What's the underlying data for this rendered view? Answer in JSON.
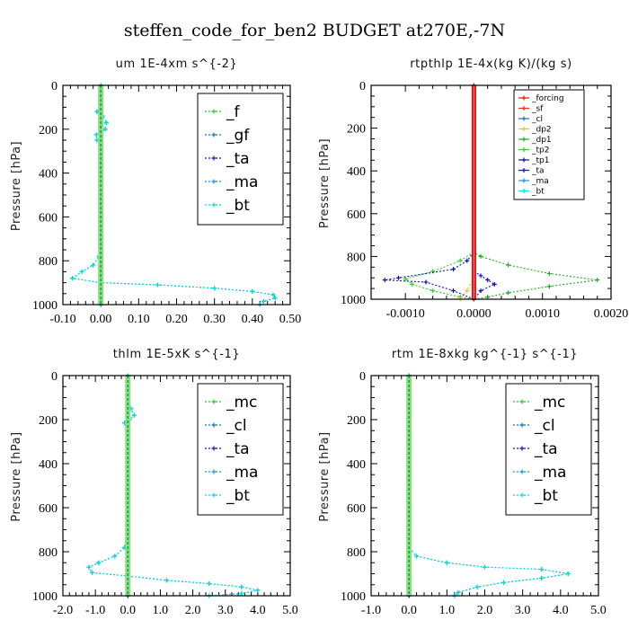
{
  "suptitle": "steffen_code_for_ben2  BUDGET at270E,-7N",
  "colors": {
    "f": "#22cc22",
    "gf": "#1177bb",
    "ta": "#1111cc",
    "ma": "#1199dd",
    "bt": "#00dddd",
    "mc": "#22cc22",
    "cl": "#1177bb",
    "forcing": "#ee1111",
    "sf": "#ee3311",
    "dp2": "#ffbb22",
    "dp1": "#22aa22",
    "tp2": "#33cc33",
    "tp1": "#1111aa"
  },
  "chart_data": [
    {
      "type": "line",
      "title": "um   1E-4xm s^{-2}",
      "ylabel": "Pressure [hPa]",
      "xlim": [
        -0.1,
        0.5
      ],
      "ylim": [
        1000,
        0
      ],
      "xticks": [
        "-0.10",
        "0.00",
        "0.10",
        "0.20",
        "0.30",
        "0.40",
        "0.50"
      ],
      "yticks": [
        "0",
        "200",
        "400",
        "600",
        "800",
        "1000"
      ],
      "legend": {
        "position": "top-right",
        "size": "large",
        "entries": [
          "_f",
          "_gf",
          "_ta",
          "_ma",
          "_bt"
        ]
      },
      "series": [
        {
          "name": "_f",
          "color_key": "f",
          "points": [
            [
              0,
              0
            ],
            [
              0,
              100
            ],
            [
              0,
              200
            ],
            [
              0,
              300
            ],
            [
              0,
              400
            ],
            [
              0,
              500
            ],
            [
              0,
              600
            ],
            [
              0,
              700
            ],
            [
              0,
              800
            ],
            [
              0,
              900
            ],
            [
              0,
              1000
            ]
          ]
        },
        {
          "name": "_gf",
          "color_key": "gf",
          "points": [
            [
              0,
              0
            ],
            [
              0,
              100
            ],
            [
              -0.01,
              120
            ],
            [
              0.005,
              140
            ],
            [
              0.015,
              170
            ],
            [
              0.012,
              200
            ],
            [
              -0.012,
              225
            ],
            [
              -0.01,
              250
            ],
            [
              0,
              300
            ],
            [
              0,
              500
            ],
            [
              0,
              700
            ],
            [
              -0.005,
              780
            ],
            [
              -0.02,
              820
            ],
            [
              -0.05,
              850
            ],
            [
              -0.075,
              880
            ],
            [
              0,
              900
            ],
            [
              0.15,
              910
            ],
            [
              0.3,
              925
            ],
            [
              0.4,
              940
            ],
            [
              0.455,
              955
            ],
            [
              0.46,
              970
            ],
            [
              0.43,
              985
            ],
            [
              0.42,
              1000
            ]
          ]
        },
        {
          "name": "_ta",
          "color_key": "ta",
          "points": [
            [
              0,
              0
            ],
            [
              0,
              500
            ],
            [
              0,
              1000
            ]
          ]
        },
        {
          "name": "_ma",
          "color_key": "ma",
          "points": [
            [
              0,
              0
            ],
            [
              0,
              500
            ],
            [
              0,
              1000
            ]
          ]
        },
        {
          "name": "_bt",
          "color_key": "bt",
          "points": [
            [
              0,
              0
            ],
            [
              0,
              100
            ],
            [
              -0.01,
              120
            ],
            [
              0.005,
              140
            ],
            [
              0.015,
              170
            ],
            [
              0.012,
              200
            ],
            [
              -0.012,
              225
            ],
            [
              -0.01,
              250
            ],
            [
              0,
              300
            ],
            [
              0,
              500
            ],
            [
              0,
              700
            ],
            [
              -0.005,
              780
            ],
            [
              -0.02,
              820
            ],
            [
              -0.05,
              850
            ],
            [
              -0.075,
              880
            ],
            [
              0,
              900
            ],
            [
              0.15,
              910
            ],
            [
              0.3,
              925
            ],
            [
              0.4,
              940
            ],
            [
              0.455,
              955
            ],
            [
              0.46,
              970
            ],
            [
              0.43,
              985
            ],
            [
              0.42,
              1000
            ]
          ]
        }
      ]
    },
    {
      "type": "line",
      "title": "rtpthlp   1E-4x(kg K)/(kg s)",
      "ylabel": "Pressure [hPa]",
      "xlim": [
        -0.0015,
        0.002
      ],
      "ylim": [
        1000,
        0
      ],
      "xticks": [
        "-0.0010",
        "0.0000",
        "0.0010",
        "0.0020"
      ],
      "xtick_values": [
        -0.001,
        0,
        0.001,
        0.002
      ],
      "yticks": [
        "0",
        "200",
        "400",
        "600",
        "800",
        "1000"
      ],
      "legend": {
        "position": "top-right",
        "size": "small",
        "entries": [
          "_forcing",
          "_sf",
          "_cl",
          "_dp2",
          "_dp1",
          "_tp2",
          "_tp1",
          "_ta",
          "_ma",
          "_bt"
        ]
      },
      "series": [
        {
          "name": "_dp1",
          "color_key": "dp1",
          "points": [
            [
              0,
              0
            ],
            [
              0,
              780
            ],
            [
              0.0001,
              800
            ],
            [
              0.0005,
              840
            ],
            [
              0.0011,
              880
            ],
            [
              0.0018,
              910
            ],
            [
              0.0011,
              940
            ],
            [
              0.0005,
              970
            ],
            [
              0.0002,
              990
            ],
            [
              0,
              1000
            ]
          ]
        },
        {
          "name": "_tp2",
          "color_key": "tp2",
          "points": [
            [
              0,
              780
            ],
            [
              -0.0002,
              820
            ],
            [
              -0.0006,
              870
            ],
            [
              -0.001,
              905
            ],
            [
              -0.0009,
              930
            ],
            [
              -0.0006,
              960
            ],
            [
              -0.0002,
              990
            ],
            [
              0,
              1000
            ]
          ]
        },
        {
          "name": "_tp1",
          "color_key": "tp1",
          "points": [
            [
              0,
              780
            ],
            [
              -0.0001,
              820
            ],
            [
              -0.0003,
              860
            ],
            [
              -0.0011,
              900
            ],
            [
              -0.0013,
              910
            ],
            [
              -0.0007,
              920
            ],
            [
              -0.0003,
              960
            ],
            [
              0,
              1000
            ]
          ]
        },
        {
          "name": "_ta",
          "color_key": "ta",
          "points": [
            [
              0,
              870
            ],
            [
              0.0001,
              890
            ],
            [
              0.0002,
              910
            ],
            [
              0.0003,
              930
            ],
            [
              0.0001,
              960
            ],
            [
              0,
              1000
            ]
          ]
        },
        {
          "name": "_cl",
          "color_key": "dp2",
          "points": [
            [
              0,
              900
            ],
            [
              -0.0001,
              960
            ],
            [
              -0.0002,
              1000
            ]
          ]
        },
        {
          "name": "_forcing",
          "color_key": "forcing",
          "points": [
            [
              0,
              0
            ],
            [
              0,
              1000
            ]
          ]
        }
      ]
    },
    {
      "type": "line",
      "title": "thlm   1E-5xK s^{-1}",
      "ylabel": "Pressure [hPa]",
      "xlim": [
        -2.0,
        5.0
      ],
      "ylim": [
        1000,
        0
      ],
      "xticks": [
        "-2.0",
        "-1.0",
        "0.0",
        "1.0",
        "2.0",
        "3.0",
        "4.0",
        "5.0"
      ],
      "yticks": [
        "0",
        "200",
        "400",
        "600",
        "800",
        "1000"
      ],
      "legend": {
        "position": "top-right",
        "size": "large",
        "entries": [
          "_mc",
          "_cl",
          "_ta",
          "_ma",
          "_bt"
        ]
      },
      "series": [
        {
          "name": "_mc",
          "color_key": "mc",
          "points": [
            [
              0,
              0
            ],
            [
              0,
              1000
            ]
          ]
        },
        {
          "name": "_cl",
          "color_key": "cl",
          "points": [
            [
              0,
              0
            ],
            [
              0,
              100
            ],
            [
              0.1,
              150
            ],
            [
              0.2,
              180
            ],
            [
              0.05,
              200
            ],
            [
              -0.1,
              215
            ],
            [
              0,
              240
            ],
            [
              0,
              700
            ],
            [
              -0.1,
              780
            ],
            [
              -0.4,
              820
            ],
            [
              -0.9,
              850
            ],
            [
              -1.2,
              870
            ],
            [
              -1.1,
              895
            ],
            [
              0,
              910
            ],
            [
              1.2,
              930
            ],
            [
              2.5,
              945
            ],
            [
              3.5,
              960
            ],
            [
              4.0,
              975
            ],
            [
              3.5,
              990
            ],
            [
              2.5,
              1000
            ]
          ]
        },
        {
          "name": "_ta",
          "color_key": "ta",
          "points": [
            [
              0,
              0
            ],
            [
              0,
              1000
            ]
          ]
        },
        {
          "name": "_bt",
          "color_key": "bt",
          "points": [
            [
              0,
              0
            ],
            [
              0,
              100
            ],
            [
              0.1,
              150
            ],
            [
              0.2,
              180
            ],
            [
              0.05,
              200
            ],
            [
              -0.1,
              215
            ],
            [
              0,
              240
            ],
            [
              0,
              700
            ],
            [
              -0.1,
              780
            ],
            [
              -0.4,
              820
            ],
            [
              -0.9,
              850
            ],
            [
              -1.2,
              870
            ],
            [
              -1.1,
              895
            ],
            [
              0,
              910
            ],
            [
              1.2,
              930
            ],
            [
              2.5,
              945
            ],
            [
              3.5,
              960
            ],
            [
              4.0,
              975
            ],
            [
              3.5,
              990
            ],
            [
              2.5,
              1000
            ]
          ]
        }
      ]
    },
    {
      "type": "line",
      "title": "rtm   1E-8xkg kg^{-1} s^{-1}",
      "ylabel": "Pressure [hPa]",
      "xlim": [
        -1.0,
        5.0
      ],
      "ylim": [
        1000,
        0
      ],
      "xticks": [
        "-1.0",
        "0.0",
        "1.0",
        "2.0",
        "3.0",
        "4.0",
        "5.0"
      ],
      "yticks": [
        "0",
        "200",
        "400",
        "600",
        "800",
        "1000"
      ],
      "legend": {
        "position": "top-right",
        "size": "large",
        "entries": [
          "_mc",
          "_cl",
          "_ta",
          "_ma",
          "_bt"
        ]
      },
      "series": [
        {
          "name": "_mc",
          "color_key": "mc",
          "points": [
            [
              0,
              0
            ],
            [
              0,
              1000
            ]
          ]
        },
        {
          "name": "_cl",
          "color_key": "cl",
          "points": [
            [
              0,
              0
            ],
            [
              0,
              780
            ],
            [
              0.2,
              820
            ],
            [
              1.0,
              850
            ],
            [
              2.0,
              870
            ],
            [
              3.5,
              880
            ],
            [
              4.2,
              900
            ],
            [
              3.5,
              920
            ],
            [
              2.5,
              940
            ],
            [
              1.8,
              960
            ],
            [
              1.3,
              985
            ],
            [
              1.2,
              1000
            ]
          ]
        },
        {
          "name": "_ta",
          "color_key": "ta",
          "points": [
            [
              0,
              0
            ],
            [
              0,
              1000
            ]
          ]
        },
        {
          "name": "_bt",
          "color_key": "bt",
          "points": [
            [
              0,
              0
            ],
            [
              0,
              780
            ],
            [
              0.2,
              820
            ],
            [
              1.0,
              850
            ],
            [
              2.0,
              870
            ],
            [
              3.5,
              880
            ],
            [
              4.2,
              900
            ],
            [
              3.5,
              920
            ],
            [
              2.5,
              940
            ],
            [
              1.8,
              960
            ],
            [
              1.3,
              985
            ],
            [
              1.2,
              1000
            ]
          ]
        }
      ]
    }
  ]
}
